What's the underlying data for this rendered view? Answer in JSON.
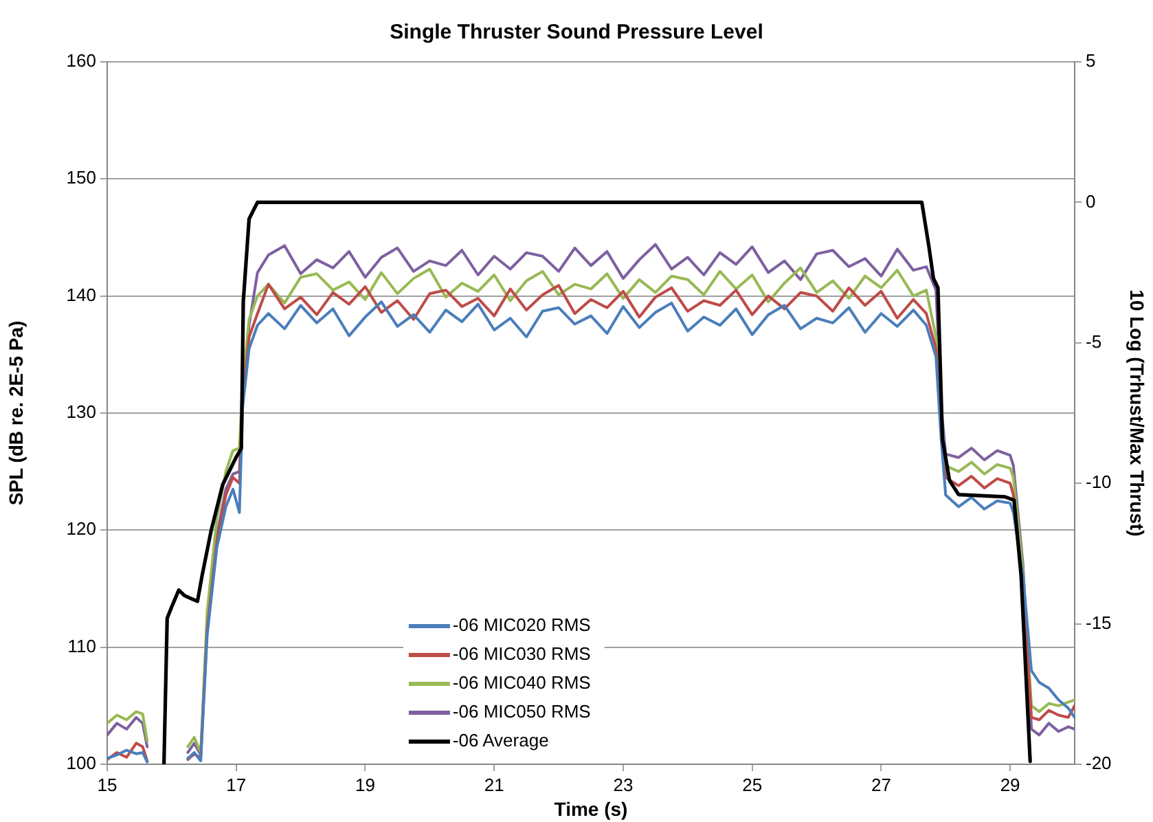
{
  "chart_data": {
    "type": "line",
    "title": "Single Thruster Sound Pressure Level",
    "xlabel": "Time (s)",
    "ylabel": "SPL (dB re. 2E-5 Pa)",
    "y2label": "10 Log (Trhust/Max Thrust)",
    "xlim": [
      15,
      30
    ],
    "xticks": [
      15,
      17,
      19,
      21,
      23,
      25,
      27,
      29
    ],
    "ylim": [
      100,
      160
    ],
    "yticks": [
      100,
      110,
      120,
      130,
      140,
      150,
      160
    ],
    "y2lim": [
      -20,
      5
    ],
    "y2ticks": [
      -20,
      -15,
      -10,
      -5,
      0,
      5
    ],
    "grid": "y",
    "legend": "bottom",
    "marker": "none",
    "line_style": "solid",
    "x": [
      15.0,
      15.15,
      15.3,
      15.45,
      15.55,
      15.62,
      15.8,
      16.25,
      16.35,
      16.45,
      16.55,
      16.7,
      16.84,
      16.95,
      17.05,
      17.1,
      17.2,
      17.33,
      17.5,
      17.75,
      18.0,
      18.25,
      18.5,
      18.75,
      19.0,
      19.25,
      19.5,
      19.75,
      20.0,
      20.25,
      20.5,
      20.75,
      21.0,
      21.25,
      21.5,
      21.75,
      22.0,
      22.25,
      22.5,
      22.75,
      23.0,
      23.25,
      23.5,
      23.75,
      24.0,
      24.25,
      24.5,
      24.75,
      25.0,
      25.25,
      25.5,
      25.75,
      26.0,
      26.25,
      26.5,
      26.75,
      27.0,
      27.25,
      27.5,
      27.7,
      27.85,
      27.93,
      28.0,
      28.2,
      28.4,
      28.6,
      28.8,
      29.0,
      29.05,
      29.2,
      29.33,
      29.45,
      29.6,
      29.75,
      29.9,
      30.0
    ],
    "series": [
      {
        "name": "-06 MIC020 RMS",
        "color": "#4a7ebb",
        "values": [
          100.5,
          100.8,
          101.2,
          100.9,
          101.0,
          100.2,
          null,
          100.5,
          101.0,
          100.3,
          111.0,
          118.5,
          122.0,
          123.5,
          121.5,
          130.5,
          135.5,
          137.5,
          138.5,
          137.2,
          139.2,
          137.7,
          138.9,
          136.6,
          138.2,
          139.5,
          137.4,
          138.4,
          136.9,
          138.8,
          137.8,
          139.3,
          137.1,
          138.1,
          136.5,
          138.7,
          139.0,
          137.6,
          138.3,
          136.8,
          139.1,
          137.3,
          138.6,
          139.4,
          137.0,
          138.2,
          137.5,
          138.9,
          136.7,
          138.4,
          139.2,
          137.2,
          138.1,
          137.7,
          139.0,
          136.9,
          138.5,
          137.4,
          138.8,
          137.5,
          134.8,
          127.8,
          123.0,
          122.0,
          122.8,
          121.8,
          122.5,
          122.3,
          121.5,
          116.0,
          108.0,
          107.0,
          106.5,
          105.5,
          104.8,
          104.0
        ]
      },
      {
        "name": "-06 MIC030 RMS",
        "color": "#be4b48",
        "values": [
          100.4,
          101.0,
          100.6,
          101.8,
          101.5,
          100.3,
          null,
          100.4,
          100.9,
          100.5,
          111.5,
          119.0,
          123.0,
          124.5,
          124.0,
          131.0,
          136.5,
          138.5,
          141.0,
          138.9,
          139.9,
          138.4,
          140.3,
          139.3,
          140.8,
          138.6,
          139.6,
          138.0,
          140.2,
          140.5,
          139.1,
          139.8,
          138.3,
          140.6,
          138.8,
          140.1,
          140.9,
          138.5,
          139.7,
          139.0,
          140.4,
          138.2,
          139.9,
          140.7,
          138.7,
          139.6,
          139.2,
          140.5,
          138.4,
          140.0,
          138.9,
          140.3,
          140.0,
          138.7,
          140.7,
          139.2,
          140.4,
          138.1,
          139.7,
          138.5,
          135.5,
          128.5,
          124.5,
          123.8,
          124.6,
          123.6,
          124.4,
          124.0,
          123.0,
          115.0,
          104.0,
          103.8,
          104.6,
          104.2,
          104.0,
          105.0
        ]
      },
      {
        "name": "-06 MIC040 RMS",
        "color": "#98b954",
        "values": [
          103.5,
          104.2,
          103.8,
          104.5,
          104.3,
          102.0,
          null,
          101.5,
          102.3,
          101.0,
          113.0,
          121.0,
          125.0,
          126.8,
          127.0,
          132.5,
          138.0,
          140.0,
          141.0,
          139.4,
          141.6,
          141.9,
          140.5,
          141.2,
          139.7,
          142.0,
          140.2,
          141.5,
          142.3,
          139.9,
          141.1,
          140.4,
          141.8,
          139.6,
          141.3,
          142.1,
          140.1,
          141.0,
          140.6,
          141.9,
          139.8,
          141.4,
          140.3,
          141.7,
          141.4,
          140.1,
          142.1,
          140.6,
          141.8,
          139.5,
          141.1,
          142.4,
          140.3,
          141.3,
          139.8,
          141.7,
          140.7,
          142.2,
          140.0,
          140.5,
          136.5,
          129.5,
          125.5,
          125.0,
          125.8,
          124.8,
          125.6,
          125.3,
          124.5,
          116.5,
          105.0,
          104.5,
          105.2,
          105.0,
          105.3,
          105.5
        ]
      },
      {
        "name": "-06 MIC050 RMS",
        "color": "#7d60a0",
        "values": [
          102.5,
          103.5,
          103.0,
          104.0,
          103.5,
          101.5,
          null,
          101.0,
          101.8,
          100.8,
          112.0,
          119.5,
          123.5,
          124.8,
          125.0,
          131.5,
          137.5,
          142.0,
          143.5,
          144.3,
          141.9,
          143.1,
          142.4,
          143.8,
          141.6,
          143.3,
          144.1,
          142.1,
          143.0,
          142.6,
          143.9,
          141.8,
          143.4,
          142.3,
          143.7,
          143.4,
          142.1,
          144.1,
          142.6,
          143.8,
          141.5,
          143.1,
          144.4,
          142.3,
          143.3,
          141.8,
          143.7,
          142.7,
          144.2,
          142.0,
          143.0,
          141.4,
          143.6,
          143.9,
          142.5,
          143.2,
          141.7,
          144.0,
          142.2,
          142.5,
          140.5,
          130.5,
          126.5,
          126.2,
          127.0,
          126.0,
          126.8,
          126.4,
          125.5,
          117.0,
          103.0,
          102.5,
          103.5,
          102.8,
          103.2,
          103.0
        ]
      },
      {
        "name": "-06 Average",
        "color": "#000000",
        "axis": "y2",
        "x": [
          15.88,
          15.93,
          16.0,
          16.11,
          16.2,
          16.3,
          16.4,
          16.47,
          16.61,
          16.79,
          17.0,
          17.08,
          17.11,
          17.2,
          17.33,
          18,
          20,
          22,
          24,
          26,
          27.63,
          27.74,
          27.81,
          27.88,
          27.95,
          28.06,
          28.2,
          28.92,
          29.06,
          29.17,
          29.31
        ],
        "values": [
          -20,
          -14.8,
          -14.4,
          -13.8,
          -14.0,
          -14.1,
          -14.2,
          -13.3,
          -11.7,
          -10.05,
          -9.07,
          -8.76,
          -3.53,
          -0.59,
          0,
          0,
          0,
          0,
          0,
          0,
          0,
          -1.57,
          -2.7,
          -3.04,
          -8.43,
          -9.9,
          -10.4,
          -10.48,
          -10.6,
          -13.3,
          -19.9
        ]
      }
    ]
  }
}
